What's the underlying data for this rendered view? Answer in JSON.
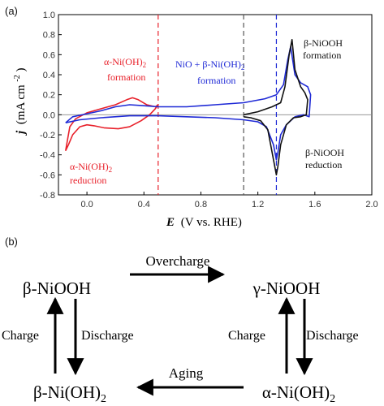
{
  "panels": {
    "a": "(a)",
    "b": "(b)"
  },
  "colors": {
    "red": "#e8202a",
    "blue": "#1f2ad6",
    "black": "#111111",
    "gray_dash": "#555555"
  },
  "chart_data": {
    "type": "line",
    "xlabel_main": "E",
    "xlabel_unit": "(V vs. RHE)",
    "ylabel_main": "j",
    "ylabel_unit": "(mA cm",
    "ylabel_sup": "-2",
    "ylabel_close": ")",
    "xlim": [
      -0.2,
      2.0
    ],
    "ylim": [
      -0.8,
      1.0
    ],
    "xticks": [
      "0.0",
      "0.4",
      "0.8",
      "1.2",
      "1.6",
      "2.0"
    ],
    "yticks": [
      "1.0",
      "0.8",
      "0.6",
      "0.4",
      "0.2",
      "0.0",
      "-0.2",
      "-0.4",
      "-0.6",
      "-0.8"
    ],
    "vlines": [
      {
        "x": 0.5,
        "color": "red"
      },
      {
        "x": 1.1,
        "color": "gray"
      },
      {
        "x": 1.33,
        "color": "blue"
      }
    ],
    "series": [
      {
        "color": "red",
        "points": [
          [
            -0.15,
            -0.36
          ],
          [
            -0.14,
            -0.28
          ],
          [
            -0.12,
            -0.12
          ],
          [
            -0.08,
            -0.04
          ],
          [
            0.0,
            0.02
          ],
          [
            0.1,
            0.06
          ],
          [
            0.2,
            0.1
          ],
          [
            0.28,
            0.15
          ],
          [
            0.32,
            0.17
          ],
          [
            0.36,
            0.15
          ],
          [
            0.42,
            0.1
          ],
          [
            0.48,
            0.08
          ],
          [
            0.5,
            0.1
          ],
          [
            0.48,
            0.06
          ],
          [
            0.44,
            0.0
          ],
          [
            0.38,
            -0.06
          ],
          [
            0.3,
            -0.12
          ],
          [
            0.22,
            -0.14
          ],
          [
            0.12,
            -0.13
          ],
          [
            0.05,
            -0.11
          ],
          [
            0.0,
            -0.1
          ],
          [
            -0.05,
            -0.12
          ],
          [
            -0.1,
            -0.2
          ],
          [
            -0.13,
            -0.3
          ],
          [
            -0.15,
            -0.36
          ]
        ]
      },
      {
        "color": "blue",
        "points": [
          [
            -0.15,
            -0.08
          ],
          [
            -0.1,
            -0.02
          ],
          [
            0.0,
            0.01
          ],
          [
            0.1,
            0.04
          ],
          [
            0.2,
            0.08
          ],
          [
            0.3,
            0.1
          ],
          [
            0.4,
            0.09
          ],
          [
            0.5,
            0.08
          ],
          [
            0.7,
            0.08
          ],
          [
            0.9,
            0.1
          ],
          [
            1.1,
            0.12
          ],
          [
            1.25,
            0.16
          ],
          [
            1.33,
            0.2
          ],
          [
            1.38,
            0.3
          ],
          [
            1.41,
            0.55
          ],
          [
            1.43,
            0.68
          ],
          [
            1.46,
            0.4
          ],
          [
            1.5,
            0.32
          ],
          [
            1.55,
            0.28
          ],
          [
            1.57,
            0.2
          ],
          [
            1.56,
            -0.02
          ],
          [
            1.52,
            0.0
          ],
          [
            1.46,
            -0.02
          ],
          [
            1.4,
            -0.1
          ],
          [
            1.36,
            -0.2
          ],
          [
            1.34,
            -0.38
          ],
          [
            1.33,
            -0.45
          ],
          [
            1.31,
            -0.3
          ],
          [
            1.26,
            -0.12
          ],
          [
            1.2,
            -0.07
          ],
          [
            1.1,
            -0.05
          ],
          [
            0.9,
            -0.03
          ],
          [
            0.7,
            -0.02
          ],
          [
            0.5,
            -0.01
          ],
          [
            0.3,
            -0.01
          ],
          [
            0.1,
            -0.03
          ],
          [
            -0.05,
            -0.05
          ],
          [
            -0.15,
            -0.08
          ]
        ]
      },
      {
        "color": "black",
        "points": [
          [
            1.1,
            0.0
          ],
          [
            1.2,
            0.03
          ],
          [
            1.3,
            0.08
          ],
          [
            1.36,
            0.12
          ],
          [
            1.39,
            0.28
          ],
          [
            1.42,
            0.6
          ],
          [
            1.44,
            0.75
          ],
          [
            1.46,
            0.45
          ],
          [
            1.5,
            0.28
          ],
          [
            1.53,
            0.22
          ],
          [
            1.55,
            0.15
          ],
          [
            1.54,
            0.0
          ],
          [
            1.5,
            -0.02
          ],
          [
            1.45,
            -0.03
          ],
          [
            1.4,
            -0.1
          ],
          [
            1.36,
            -0.3
          ],
          [
            1.34,
            -0.52
          ],
          [
            1.33,
            -0.6
          ],
          [
            1.31,
            -0.45
          ],
          [
            1.27,
            -0.15
          ],
          [
            1.22,
            -0.06
          ],
          [
            1.15,
            -0.03
          ],
          [
            1.1,
            -0.02
          ]
        ]
      }
    ],
    "annotations": [
      {
        "text": "α-Ni(OH)",
        "sub": "2",
        "line2": "formation",
        "color": "red"
      },
      {
        "text": "NiO + β-Ni(OH)",
        "sub": "2",
        "line2": "formation",
        "color": "blue"
      },
      {
        "text": "β-NiOOH",
        "line2": "formation",
        "color": "black"
      },
      {
        "text": "α-Ni(OH)",
        "sub": "2",
        "line2": "reduction",
        "color": "red"
      },
      {
        "text": "β-NiOOH",
        "line2": "reduction",
        "color": "black"
      }
    ]
  },
  "diagram": {
    "nodes": {
      "bnooh": "β-NiOOH",
      "gnooh": "γ-NiOOH",
      "bnioh": "β-Ni(OH)",
      "bnioh_sub": "2",
      "anioh": "α-Ni(OH)",
      "anioh_sub": "2"
    },
    "edges": {
      "overcharge": "Overcharge",
      "aging": "Aging",
      "charge_left": "Charge",
      "discharge_left": "Discharge",
      "charge_right": "Charge",
      "discharge_right": "Discharge"
    }
  }
}
